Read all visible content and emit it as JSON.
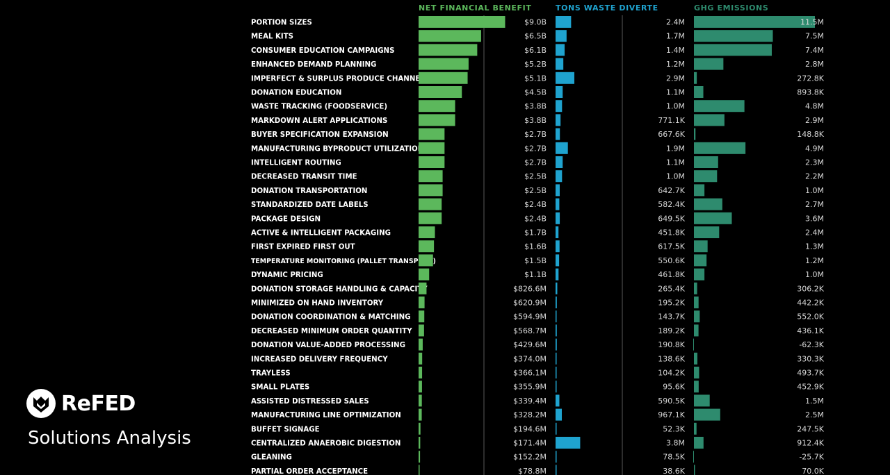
{
  "brand": {
    "name": "ReFED",
    "subtitle": "Solutions Analysis"
  },
  "colors": {
    "background": "#000000",
    "label": "#ffffff",
    "value_text": "#d9d9d9",
    "financial": "#5cb85c",
    "waste": "#1fa3cf",
    "ghg": "#2e8b6e",
    "financial_header": "#5cb85c",
    "waste_header": "#1fa3cf",
    "ghg_header": "#2e8b6e",
    "axis_line": "#5a5a5a"
  },
  "chart_data": {
    "type": "bar",
    "layout": "horizontal multi-panel",
    "panels": [
      {
        "key": "financial",
        "title": "NET FINANCIAL BENEFIT",
        "unit": "$",
        "xlim": [
          0,
          10.7
        ]
      },
      {
        "key": "waste",
        "title": "TONS WASTE DIVERTE",
        "unit": "tons",
        "xlim": [
          0,
          10.3
        ]
      },
      {
        "key": "ghg",
        "title": "GHG EMISSIONS",
        "unit": "",
        "xlim": [
          0,
          7.6
        ]
      }
    ],
    "categories": [
      "PORTION SIZES",
      "MEAL KITS",
      "CONSUMER EDUCATION CAMPAIGNS",
      "ENHANCED DEMAND PLANNING",
      "IMPERFECT & SURPLUS PRODUCE CHANNELS",
      "DONATION EDUCATION",
      "WASTE TRACKING (FOODSERVICE)",
      "MARKDOWN ALERT APPLICATIONS",
      "BUYER SPECIFICATION EXPANSION",
      "MANUFACTURING BYPRODUCT UTILIZATION",
      "INTELLIGENT ROUTING",
      "DECREASED TRANSIT TIME",
      "DONATION TRANSPORTATION",
      "STANDARDIZED DATE LABELS",
      "PACKAGE DESIGN",
      "ACTIVE & INTELLIGENT PACKAGING",
      "FIRST EXPIRED FIRST OUT",
      "TEMPERATURE MONITORING (PALLET TRANSPORT)",
      "DYNAMIC PRICING",
      "DONATION STORAGE HANDLING & CAPACITY",
      "MINIMIZED ON HAND INVENTORY",
      "DONATION COORDINATION & MATCHING",
      "DECREASED MINIMUM ORDER QUANTITY",
      "DONATION VALUE-ADDED PROCESSING",
      "INCREASED DELIVERY FREQUENCY",
      "TRAYLESS",
      "SMALL PLATES",
      "ASSISTED DISTRESSED SALES",
      "MANUFACTURING LINE OPTIMIZATION",
      "BUFFET SIGNAGE",
      "CENTRALIZED ANAEROBIC DIGESTION",
      "GLEANING",
      "PARTIAL ORDER ACCEPTANCE"
    ],
    "series": [
      {
        "key": "financial",
        "values": [
          9.0,
          6.5,
          6.1,
          5.2,
          5.1,
          4.5,
          3.8,
          3.8,
          2.7,
          2.7,
          2.7,
          2.5,
          2.5,
          2.4,
          2.4,
          1.7,
          1.6,
          1.5,
          1.1,
          0.8266,
          0.6209,
          0.5949,
          0.5687,
          0.4296,
          0.374,
          0.3661,
          0.3559,
          0.3394,
          0.3282,
          0.1946,
          0.1714,
          0.1522,
          0.0788
        ],
        "labels": [
          "$9.0B",
          "$6.5B",
          "$6.1B",
          "$5.2B",
          "$5.1B",
          "$4.5B",
          "$3.8B",
          "$3.8B",
          "$2.7B",
          "$2.7B",
          "$2.7B",
          "$2.5B",
          "$2.5B",
          "$2.4B",
          "$2.4B",
          "$1.7B",
          "$1.6B",
          "$1.5B",
          "$1.1B",
          "$826.6M",
          "$620.9M",
          "$594.9M",
          "$568.7M",
          "$429.6M",
          "$374.0M",
          "$366.1M",
          "$355.9M",
          "$339.4M",
          "$328.2M",
          "$194.6M",
          "$171.4M",
          "$152.2M",
          "$78.8M"
        ]
      },
      {
        "key": "waste",
        "values": [
          2.4,
          1.7,
          1.4,
          1.2,
          2.9,
          1.1,
          1.0,
          0.7711,
          0.6676,
          1.9,
          1.1,
          1.0,
          0.6427,
          0.5824,
          0.6495,
          0.4518,
          0.6175,
          0.5506,
          0.4618,
          0.2654,
          0.1952,
          0.1437,
          0.1892,
          0.1908,
          0.1386,
          0.1042,
          0.0956,
          0.5905,
          0.967,
          0.0523,
          3.8,
          0.0785,
          0.0386
        ],
        "labels": [
          "2.4M",
          "1.7M",
          "1.4M",
          "1.2M",
          "2.9M",
          "1.1M",
          "1.0M",
          "771.1K",
          "667.6K",
          "1.9M",
          "1.1M",
          "1.0M",
          "642.7K",
          "582.4K",
          "649.5K",
          "451.8K",
          "617.5K",
          "550.6K",
          "461.8K",
          "265.4K",
          "195.2K",
          "143.7K",
          "189.2K",
          "190.8K",
          "138.6K",
          "104.2K",
          "95.6K",
          "590.5K",
          "967.1K",
          "52.3K",
          "3.8M",
          "78.5K",
          "38.6K"
        ]
      },
      {
        "key": "ghg",
        "values": [
          11.5,
          7.5,
          7.4,
          2.8,
          0.2728,
          0.8938,
          4.8,
          2.9,
          0.1488,
          4.9,
          2.3,
          2.2,
          1.0,
          2.7,
          3.6,
          2.4,
          1.3,
          1.2,
          1.0,
          0.3062,
          0.4422,
          0.552,
          0.4361,
          -0.0623,
          0.3303,
          0.4937,
          0.4529,
          1.5,
          2.5,
          0.2475,
          0.9124,
          -0.0257,
          0.07
        ],
        "labels": [
          "11.5M",
          "7.5M",
          "7.4M",
          "2.8M",
          "272.8K",
          "893.8K",
          "4.8M",
          "2.9M",
          "148.8K",
          "4.9M",
          "2.3M",
          "2.2M",
          "1.0M",
          "2.7M",
          "3.6M",
          "2.4M",
          "1.3M",
          "1.2M",
          "1.0M",
          "306.2K",
          "442.2K",
          "552.0K",
          "436.1K",
          "-62.3K",
          "330.3K",
          "493.7K",
          "452.9K",
          "1.5M",
          "2.5M",
          "247.5K",
          "912.4K",
          "-25.7K",
          "70.0K"
        ]
      }
    ]
  }
}
